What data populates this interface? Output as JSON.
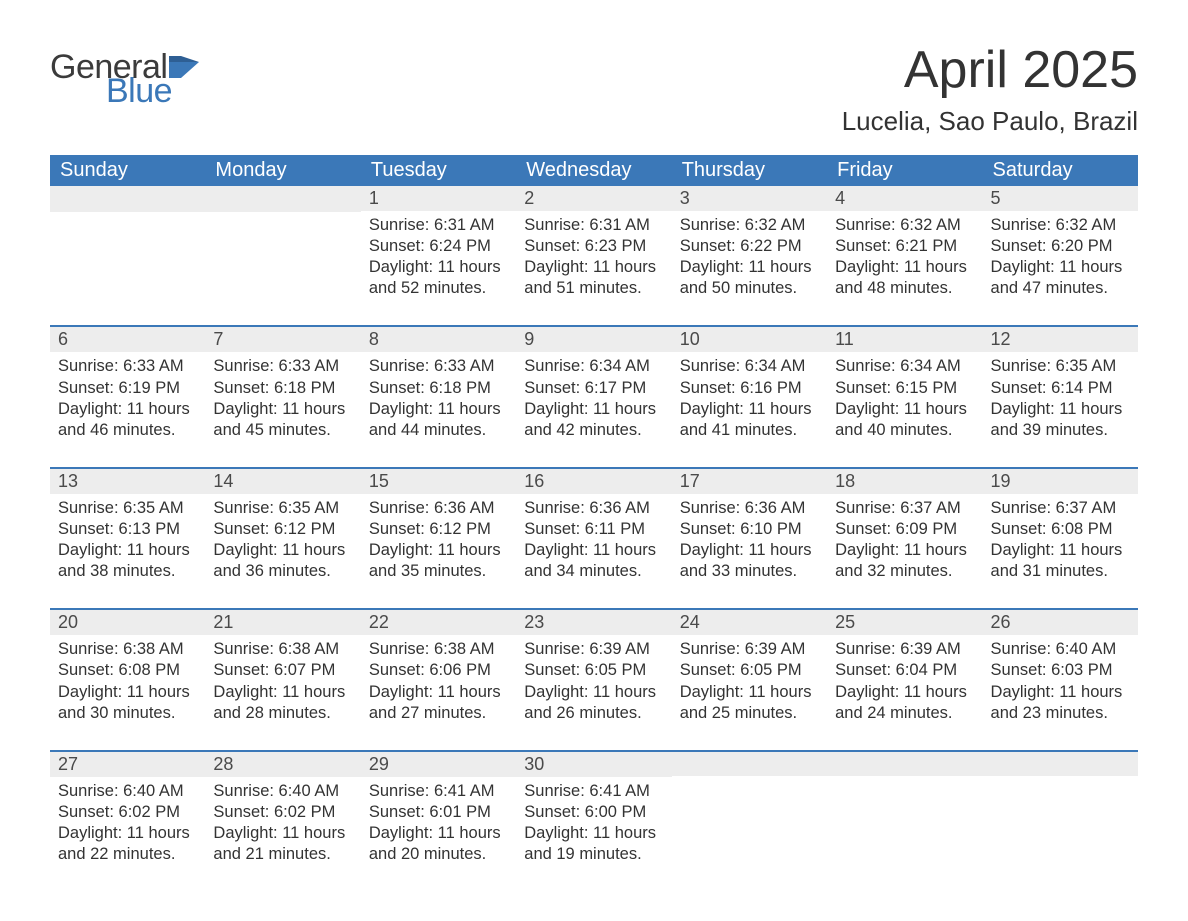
{
  "colors": {
    "header_bg": "#3b78b8",
    "header_text": "#ffffff",
    "daynum_bg": "#ededed",
    "daynum_border": "#3b78b8",
    "body_text": "#333333",
    "logo_gray": "#3b3b3b",
    "logo_blue": "#3b78b8",
    "page_bg": "#ffffff"
  },
  "typography": {
    "title_fontsize": 52,
    "location_fontsize": 26,
    "dayheader_fontsize": 20,
    "daynum_fontsize": 18,
    "body_fontsize": 16.5,
    "font_family": "Segoe UI"
  },
  "logo": {
    "line1": "General",
    "line2": "Blue"
  },
  "title": "April 2025",
  "location": "Lucelia, Sao Paulo, Brazil",
  "day_headers": [
    "Sunday",
    "Monday",
    "Tuesday",
    "Wednesday",
    "Thursday",
    "Friday",
    "Saturday"
  ],
  "weeks": [
    [
      {
        "n": "",
        "sunrise": "",
        "sunset": "",
        "daylight": ""
      },
      {
        "n": "",
        "sunrise": "",
        "sunset": "",
        "daylight": ""
      },
      {
        "n": "1",
        "sunrise": "Sunrise: 6:31 AM",
        "sunset": "Sunset: 6:24 PM",
        "daylight": "Daylight: 11 hours and 52 minutes."
      },
      {
        "n": "2",
        "sunrise": "Sunrise: 6:31 AM",
        "sunset": "Sunset: 6:23 PM",
        "daylight": "Daylight: 11 hours and 51 minutes."
      },
      {
        "n": "3",
        "sunrise": "Sunrise: 6:32 AM",
        "sunset": "Sunset: 6:22 PM",
        "daylight": "Daylight: 11 hours and 50 minutes."
      },
      {
        "n": "4",
        "sunrise": "Sunrise: 6:32 AM",
        "sunset": "Sunset: 6:21 PM",
        "daylight": "Daylight: 11 hours and 48 minutes."
      },
      {
        "n": "5",
        "sunrise": "Sunrise: 6:32 AM",
        "sunset": "Sunset: 6:20 PM",
        "daylight": "Daylight: 11 hours and 47 minutes."
      }
    ],
    [
      {
        "n": "6",
        "sunrise": "Sunrise: 6:33 AM",
        "sunset": "Sunset: 6:19 PM",
        "daylight": "Daylight: 11 hours and 46 minutes."
      },
      {
        "n": "7",
        "sunrise": "Sunrise: 6:33 AM",
        "sunset": "Sunset: 6:18 PM",
        "daylight": "Daylight: 11 hours and 45 minutes."
      },
      {
        "n": "8",
        "sunrise": "Sunrise: 6:33 AM",
        "sunset": "Sunset: 6:18 PM",
        "daylight": "Daylight: 11 hours and 44 minutes."
      },
      {
        "n": "9",
        "sunrise": "Sunrise: 6:34 AM",
        "sunset": "Sunset: 6:17 PM",
        "daylight": "Daylight: 11 hours and 42 minutes."
      },
      {
        "n": "10",
        "sunrise": "Sunrise: 6:34 AM",
        "sunset": "Sunset: 6:16 PM",
        "daylight": "Daylight: 11 hours and 41 minutes."
      },
      {
        "n": "11",
        "sunrise": "Sunrise: 6:34 AM",
        "sunset": "Sunset: 6:15 PM",
        "daylight": "Daylight: 11 hours and 40 minutes."
      },
      {
        "n": "12",
        "sunrise": "Sunrise: 6:35 AM",
        "sunset": "Sunset: 6:14 PM",
        "daylight": "Daylight: 11 hours and 39 minutes."
      }
    ],
    [
      {
        "n": "13",
        "sunrise": "Sunrise: 6:35 AM",
        "sunset": "Sunset: 6:13 PM",
        "daylight": "Daylight: 11 hours and 38 minutes."
      },
      {
        "n": "14",
        "sunrise": "Sunrise: 6:35 AM",
        "sunset": "Sunset: 6:12 PM",
        "daylight": "Daylight: 11 hours and 36 minutes."
      },
      {
        "n": "15",
        "sunrise": "Sunrise: 6:36 AM",
        "sunset": "Sunset: 6:12 PM",
        "daylight": "Daylight: 11 hours and 35 minutes."
      },
      {
        "n": "16",
        "sunrise": "Sunrise: 6:36 AM",
        "sunset": "Sunset: 6:11 PM",
        "daylight": "Daylight: 11 hours and 34 minutes."
      },
      {
        "n": "17",
        "sunrise": "Sunrise: 6:36 AM",
        "sunset": "Sunset: 6:10 PM",
        "daylight": "Daylight: 11 hours and 33 minutes."
      },
      {
        "n": "18",
        "sunrise": "Sunrise: 6:37 AM",
        "sunset": "Sunset: 6:09 PM",
        "daylight": "Daylight: 11 hours and 32 minutes."
      },
      {
        "n": "19",
        "sunrise": "Sunrise: 6:37 AM",
        "sunset": "Sunset: 6:08 PM",
        "daylight": "Daylight: 11 hours and 31 minutes."
      }
    ],
    [
      {
        "n": "20",
        "sunrise": "Sunrise: 6:38 AM",
        "sunset": "Sunset: 6:08 PM",
        "daylight": "Daylight: 11 hours and 30 minutes."
      },
      {
        "n": "21",
        "sunrise": "Sunrise: 6:38 AM",
        "sunset": "Sunset: 6:07 PM",
        "daylight": "Daylight: 11 hours and 28 minutes."
      },
      {
        "n": "22",
        "sunrise": "Sunrise: 6:38 AM",
        "sunset": "Sunset: 6:06 PM",
        "daylight": "Daylight: 11 hours and 27 minutes."
      },
      {
        "n": "23",
        "sunrise": "Sunrise: 6:39 AM",
        "sunset": "Sunset: 6:05 PM",
        "daylight": "Daylight: 11 hours and 26 minutes."
      },
      {
        "n": "24",
        "sunrise": "Sunrise: 6:39 AM",
        "sunset": "Sunset: 6:05 PM",
        "daylight": "Daylight: 11 hours and 25 minutes."
      },
      {
        "n": "25",
        "sunrise": "Sunrise: 6:39 AM",
        "sunset": "Sunset: 6:04 PM",
        "daylight": "Daylight: 11 hours and 24 minutes."
      },
      {
        "n": "26",
        "sunrise": "Sunrise: 6:40 AM",
        "sunset": "Sunset: 6:03 PM",
        "daylight": "Daylight: 11 hours and 23 minutes."
      }
    ],
    [
      {
        "n": "27",
        "sunrise": "Sunrise: 6:40 AM",
        "sunset": "Sunset: 6:02 PM",
        "daylight": "Daylight: 11 hours and 22 minutes."
      },
      {
        "n": "28",
        "sunrise": "Sunrise: 6:40 AM",
        "sunset": "Sunset: 6:02 PM",
        "daylight": "Daylight: 11 hours and 21 minutes."
      },
      {
        "n": "29",
        "sunrise": "Sunrise: 6:41 AM",
        "sunset": "Sunset: 6:01 PM",
        "daylight": "Daylight: 11 hours and 20 minutes."
      },
      {
        "n": "30",
        "sunrise": "Sunrise: 6:41 AM",
        "sunset": "Sunset: 6:00 PM",
        "daylight": "Daylight: 11 hours and 19 minutes."
      },
      {
        "n": "",
        "sunrise": "",
        "sunset": "",
        "daylight": ""
      },
      {
        "n": "",
        "sunrise": "",
        "sunset": "",
        "daylight": ""
      },
      {
        "n": "",
        "sunrise": "",
        "sunset": "",
        "daylight": ""
      }
    ]
  ]
}
